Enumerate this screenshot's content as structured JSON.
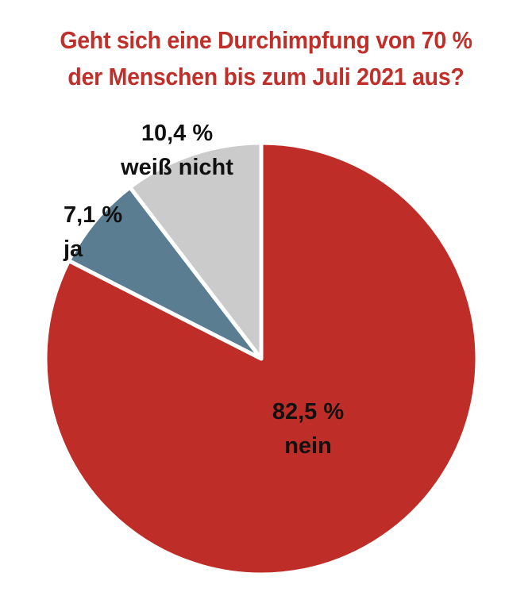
{
  "chart_data": {
    "type": "pie",
    "title_lines": [
      "Geht sich eine Durchimpfung von 70 %",
      "der Menschen bis zum Juli 2021 aus?"
    ],
    "start": "12 o'clock",
    "direction": "clockwise",
    "slices": [
      {
        "label": "nein",
        "value": 82.5,
        "value_text": "82,5 %",
        "color": "#be2d27"
      },
      {
        "label": "ja",
        "value": 7.1,
        "value_text": "7,1 %",
        "color": "#5a7d92"
      },
      {
        "label": "weiß nicht",
        "value": 10.4,
        "value_text": "10,4 %",
        "color": "#cbcbcb"
      }
    ],
    "colors": {
      "title": "#c0302b",
      "label_text": "#111111",
      "slice_border": "#ffffff"
    }
  }
}
